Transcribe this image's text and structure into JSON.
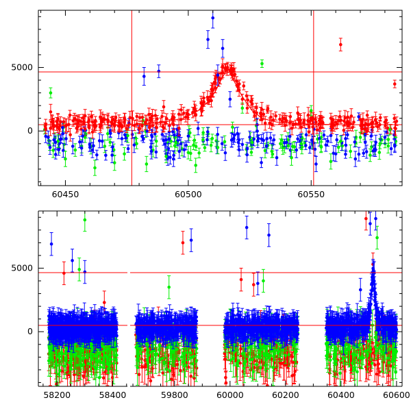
{
  "chart_data": [
    {
      "type": "scatter",
      "panel": "top",
      "title": "",
      "xlabel": "",
      "ylabel": "",
      "xlim": [
        60439,
        60587
      ],
      "ylim": [
        -4300,
        9500
      ],
      "grid": false,
      "legend": "none",
      "xticks": [
        60450,
        60500,
        60550
      ],
      "xtick_labels": [
        "60450",
        "60500",
        "60550"
      ],
      "yticks": [
        0,
        5000
      ],
      "ytick_labels": [
        "0",
        "5000"
      ],
      "reference_lines": {
        "horizontal": [
          4650,
          500
        ],
        "vertical": [
          60477,
          60551
        ]
      },
      "model_curve": {
        "name": "",
        "color": "#ff0000",
        "points": [
          [
            60480,
            500
          ],
          [
            60490,
            700
          ],
          [
            60498,
            1000
          ],
          [
            60504,
            1600
          ],
          [
            60508,
            2300
          ],
          [
            60511,
            3100
          ],
          [
            60513,
            3900
          ],
          [
            60515,
            4600
          ],
          [
            60516,
            4900
          ],
          [
            60517,
            4600
          ],
          [
            60519,
            3800
          ],
          [
            60522,
            2700
          ],
          [
            60526,
            1600
          ],
          [
            60530,
            1000
          ],
          [
            60536,
            700
          ],
          [
            60548,
            550
          ],
          [
            60560,
            500
          ]
        ]
      },
      "series": [
        {
          "color": "#ff0000",
          "points": [
            [
              60442,
              200
            ],
            [
              60444,
              1500
            ],
            [
              60447,
              900
            ],
            [
              60452,
              -300
            ],
            [
              60455,
              800
            ],
            [
              60458,
              1200
            ],
            [
              60462,
              300
            ],
            [
              60466,
              900
            ],
            [
              60470,
              400
            ],
            [
              60474,
              1000
            ],
            [
              60480,
              200
            ],
            [
              60484,
              1300
            ],
            [
              60487,
              300
            ],
            [
              60490,
              1900
            ],
            [
              60494,
              500
            ],
            [
              60497,
              900
            ],
            [
              60500,
              1300
            ],
            [
              60503,
              1600
            ],
            [
              60506,
              2000
            ],
            [
              60509,
              2700
            ],
            [
              60511,
              3400
            ],
            [
              60513,
              4100
            ],
            [
              60514,
              4600
            ],
            [
              60515,
              4900
            ],
            [
              60516,
              5000
            ],
            [
              60517,
              4800
            ],
            [
              60518,
              4400
            ],
            [
              60520,
              3500
            ],
            [
              60522,
              2500
            ],
            [
              60524,
              1800
            ],
            [
              60527,
              1200
            ],
            [
              60530,
              900
            ],
            [
              60534,
              500
            ],
            [
              60540,
              800
            ],
            [
              60546,
              300
            ],
            [
              60552,
              700
            ],
            [
              60558,
              1000
            ],
            [
              60562,
              6800
            ],
            [
              60565,
              400
            ],
            [
              60570,
              900
            ],
            [
              60575,
              300
            ],
            [
              60580,
              700
            ],
            [
              60584,
              3700
            ]
          ],
          "errors": [
            400,
            600,
            400,
            500,
            400,
            500,
            400,
            400,
            500,
            400,
            400,
            500,
            400,
            500,
            400,
            400,
            400,
            400,
            400,
            400,
            400,
            400,
            400,
            400,
            400,
            400,
            400,
            400,
            400,
            400,
            400,
            400,
            400,
            400,
            400,
            400,
            400,
            500,
            400,
            400,
            400,
            400,
            300
          ]
        },
        {
          "color": "#0000ff",
          "points": [
            [
              60443,
              -500
            ],
            [
              60446,
              -900
            ],
            [
              60449,
              -200
            ],
            [
              60453,
              -1200
            ],
            [
              60457,
              -400
            ],
            [
              60461,
              -1500
            ],
            [
              60465,
              -800
            ],
            [
              60469,
              -1900
            ],
            [
              60473,
              -600
            ],
            [
              60478,
              -1100
            ],
            [
              60482,
              4300
            ],
            [
              60485,
              -1600
            ],
            [
              60488,
              4700
            ],
            [
              60491,
              -700
            ],
            [
              60494,
              -2200
            ],
            [
              60497,
              -1000
            ],
            [
              60500,
              -400
            ],
            [
              60504,
              200
            ],
            [
              60508,
              7200
            ],
            [
              60510,
              8900
            ],
            [
              60512,
              4400
            ],
            [
              60514,
              6500
            ],
            [
              60517,
              2500
            ],
            [
              60520,
              -200
            ],
            [
              60524,
              -1400
            ],
            [
              60528,
              500
            ],
            [
              60532,
              -600
            ],
            [
              60536,
              -2100
            ],
            [
              60540,
              -900
            ],
            [
              60544,
              -1500
            ],
            [
              60548,
              -300
            ],
            [
              60552,
              -2600
            ],
            [
              60556,
              -1100
            ],
            [
              60560,
              -1800
            ],
            [
              60564,
              -600
            ],
            [
              60568,
              -2200
            ],
            [
              60572,
              -900
            ],
            [
              60576,
              -1400
            ],
            [
              60580,
              -500
            ],
            [
              60584,
              -1100
            ]
          ],
          "errors": [
            500,
            500,
            500,
            600,
            500,
            600,
            500,
            600,
            500,
            600,
            700,
            600,
            500,
            500,
            600,
            500,
            500,
            500,
            700,
            800,
            800,
            700,
            600,
            500,
            500,
            500,
            500,
            600,
            500,
            600,
            500,
            600,
            500,
            600,
            500,
            600,
            500,
            600,
            500,
            500
          ]
        },
        {
          "color": "#00ee00",
          "points": [
            [
              60444,
              3000
            ],
            [
              60447,
              -800
            ],
            [
              60450,
              -2200
            ],
            [
              60454,
              -1500
            ],
            [
              60458,
              -500
            ],
            [
              60462,
              -2900
            ],
            [
              60466,
              -1200
            ],
            [
              60470,
              -2500
            ],
            [
              60474,
              -1800
            ],
            [
              60479,
              -1000
            ],
            [
              60483,
              -2600
            ],
            [
              60487,
              -800
            ],
            [
              60491,
              -2000
            ],
            [
              60495,
              -900
            ],
            [
              60500,
              -1700
            ],
            [
              60506,
              -700
            ],
            [
              60512,
              -1300
            ],
            [
              60518,
              300
            ],
            [
              60522,
              1800
            ],
            [
              60526,
              -900
            ],
            [
              60530,
              5300
            ],
            [
              60534,
              -1600
            ],
            [
              60538,
              -700
            ],
            [
              60542,
              -2100
            ],
            [
              60546,
              -1000
            ],
            [
              60550,
              1600
            ],
            [
              60554,
              -1200
            ],
            [
              60558,
              -2400
            ],
            [
              60562,
              -800
            ],
            [
              60566,
              -1600
            ],
            [
              60570,
              -500
            ],
            [
              60574,
              -1900
            ],
            [
              60578,
              -1000
            ],
            [
              60582,
              100
            ]
          ],
          "errors": [
            400,
            500,
            600,
            500,
            400,
            600,
            500,
            600,
            500,
            400,
            600,
            400,
            500,
            400,
            500,
            400,
            500,
            400,
            400,
            400,
            300,
            500,
            400,
            600,
            400,
            400,
            500,
            600,
            400,
            500,
            400,
            500,
            400,
            400
          ]
        }
      ]
    },
    {
      "type": "scatter",
      "panel": "bottom",
      "title": "",
      "xlabel": "",
      "ylabel": "",
      "broken_x_axis": true,
      "segments": [
        {
          "xlim": [
            58133,
            58453
          ],
          "xticks": [
            58200,
            58400
          ],
          "xtick_labels": [
            "58200",
            "58400"
          ],
          "data_range": [
            58170,
            58415
          ]
        },
        {
          "xlim": [
            59640,
            60620
          ],
          "xticks": [
            59800,
            60000,
            60200,
            60400,
            60600
          ],
          "xtick_labels": [
            "59800",
            "60000",
            "60200",
            "60400",
            "60600"
          ],
          "data_ranges": [
            [
              59660,
              59880
            ],
            [
              59980,
              60245
            ],
            [
              60345,
              60600
            ]
          ]
        }
      ],
      "ylim": [
        -4300,
        9500
      ],
      "grid": false,
      "legend": "none",
      "yticks": [
        0,
        5000
      ],
      "ytick_labels": [
        "0",
        "5000"
      ],
      "reference_lines": {
        "horizontal": [
          4650,
          500
        ]
      },
      "series": [
        {
          "color": "#0000ff",
          "highlights": [
            [
              58180,
              6900
            ],
            [
              58255,
              5600
            ],
            [
              59860,
              7200
            ],
            [
              60060,
              8200
            ],
            [
              60140,
              7600
            ],
            [
              60505,
              8500
            ],
            [
              60525,
              8900
            ],
            [
              60470,
              3300
            ],
            [
              58300,
              4700
            ],
            [
              60100,
              3800
            ]
          ]
        },
        {
          "color": "#00ee00",
          "highlights": [
            [
              58300,
              8800
            ],
            [
              58280,
              4900
            ],
            [
              60120,
              4000
            ],
            [
              60530,
              7400
            ],
            [
              59780,
              3500
            ]
          ]
        },
        {
          "color": "#ff0000",
          "highlights": [
            [
              58225,
              4600
            ],
            [
              59830,
              7000
            ],
            [
              60085,
              3700
            ],
            [
              60490,
              8900
            ],
            [
              60515,
              5300
            ],
            [
              58370,
              2300
            ],
            [
              60040,
              4100
            ]
          ]
        }
      ]
    }
  ]
}
